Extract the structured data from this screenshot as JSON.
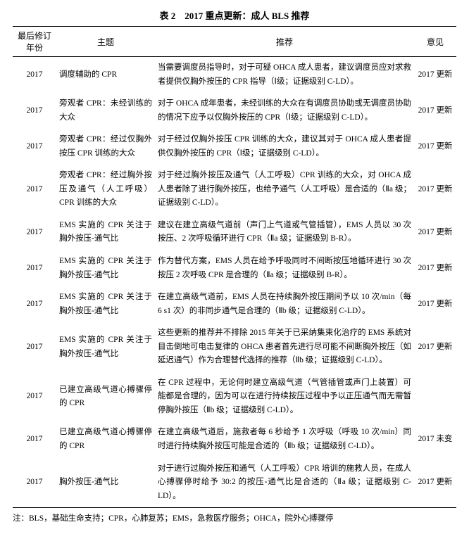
{
  "title": "表 2　2017 重点更新：成人 BLS 推荐",
  "columns": [
    "最后修订年份",
    "主题",
    "推荐",
    "意见"
  ],
  "rows": [
    {
      "year": "2017",
      "topic": "调度辅助的 CPR",
      "rec": "当需要调度员指导时，对于可疑 OHCA 成人患者，建议调度员应对求救者提供仅胸外按压的 CPR 指导（Ⅰ级；证据级别 C-LD）。",
      "opinion": "2017 更新"
    },
    {
      "year": "2017",
      "topic": "旁观者 CPR：未经训练的大众",
      "rec": "对于 OHCA 成年患者，未经训练的大众在有调度员协助或无调度员协助的情况下应予以仅胸外按压的 CPR（Ⅰ级；证据级别 C-LD）。",
      "opinion": "2017 更新"
    },
    {
      "year": "2017",
      "topic": "旁观者 CPR：经过仅胸外按压 CPR 训练的大众",
      "rec": "对于经过仅胸外按压 CPR 训练的大众，建议其对于 OHCA 成人患者提供仅胸外按压的 CPR（Ⅰ级；证据级别 C-LD）。",
      "opinion": "2017 更新"
    },
    {
      "year": "2017",
      "topic": "旁观者 CPR：经过胸外按压及通气（人工呼吸）CPR 训练的大众",
      "rec": "对于经过胸外按压及通气（人工呼吸）CPR 训练的大众，对 OHCA 成人患者除了进行胸外按压，也给予通气（人工呼吸）是合适的（Ⅱa 级；证据级别 C-LD）。",
      "opinion": "2017 更新"
    },
    {
      "year": "2017",
      "topic": "EMS 实施的 CPR 关注于胸外按压-通气比",
      "rec": "建议在建立高级气道前（声门上气道或气管插管），EMS 人员以 30 次按压、2 次呼吸循环进行 CPR（Ⅱa 级；证据级别 B-R）。",
      "opinion": "2017 更新"
    },
    {
      "year": "2017",
      "topic": "EMS 实施的 CPR 关注于胸外按压-通气比",
      "rec": "作为替代方案，EMS 人员在给予呼吸同时不间断按压地循环进行 30 次按压 2 次呼吸 CPR 是合理的（Ⅱa 级；证据级别 B-R）。",
      "opinion": "2017 更新"
    },
    {
      "year": "2017",
      "topic": "EMS 实施的 CPR 关注于胸外按压-通气比",
      "rec": "在建立高级气道前，EMS 人员在持续胸外按压期间予以 10 次/min（每 6 s1 次）的非同步通气是合理的（Ⅱb 级；证据级别 C-LD）。",
      "opinion": "2017 更新"
    },
    {
      "year": "2017",
      "topic": "EMS 实施的 CPR 关注于胸外按压-通气比",
      "rec": "这些更新的推荐并不排除 2015 年关于已采纳集束化治疗的 EMS 系统对目击倒地可电击复律的 OHCA 患者首先进行尽可能不间断胸外按压（如延迟通气）作为合理替代选择的推荐（Ⅱb 级；证据级别 C-LD）。",
      "opinion": "2017 更新"
    },
    {
      "year": "2017",
      "topic": "已建立高级气道心搏骤停的 CPR",
      "rec": "在 CPR 过程中，无论何时建立高级气道（气管插管或声门上装置）可能都是合理的，因为可以在进行持续按压过程中予以正压通气而无需暂停胸外按压（Ⅱb 级；证据级别 C-LD）。",
      "opinion": ""
    },
    {
      "year": "2017",
      "topic": "已建立高级气道心搏骤停的 CPR",
      "rec": "在建立高级气道后，施救者每 6 秒给予 1 次呼吸（呼吸 10 次/min）同时进行持续胸外按压可能是合适的（Ⅱb 级；证据级别 C-LD）。",
      "opinion": "2017 未变"
    },
    {
      "year": "2017",
      "topic": "胸外按压-通气比",
      "rec": "对于进行过胸外按压和通气（人工呼吸）CPR 培训的施救人员，在成人心搏骤停时给予 30:2 的按压-通气比是合适的（Ⅱa 级；证据级别 C-LD）。",
      "opinion": "2017 更新"
    }
  ],
  "footnote": "注：BLS，基础生命支持；CPR，心肺复苏；EMS，急救医疗服务；OHCA，院外心搏骤停"
}
